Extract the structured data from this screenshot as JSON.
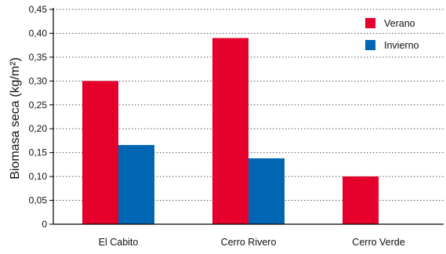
{
  "chart_data": {
    "type": "bar",
    "ylabel": "Biomasa seca (kg/m²)",
    "categories": [
      "El Cabito",
      "Cerro Rivero",
      "Cerro Verde"
    ],
    "series": [
      {
        "name": "Verano",
        "color": "#e4002b",
        "values": [
          0.3,
          0.39,
          0.1
        ]
      },
      {
        "name": "Invierno",
        "color": "#0066b3",
        "values": [
          0.166,
          0.138,
          null
        ]
      }
    ],
    "ylim": [
      0,
      0.45
    ],
    "yticks": [
      "0",
      "0,05",
      "0,10",
      "0,15",
      "0,20",
      "0,25",
      "0,30",
      "0,35",
      "0,40",
      "0,45"
    ],
    "grid": true,
    "legend_position": "top-right"
  }
}
